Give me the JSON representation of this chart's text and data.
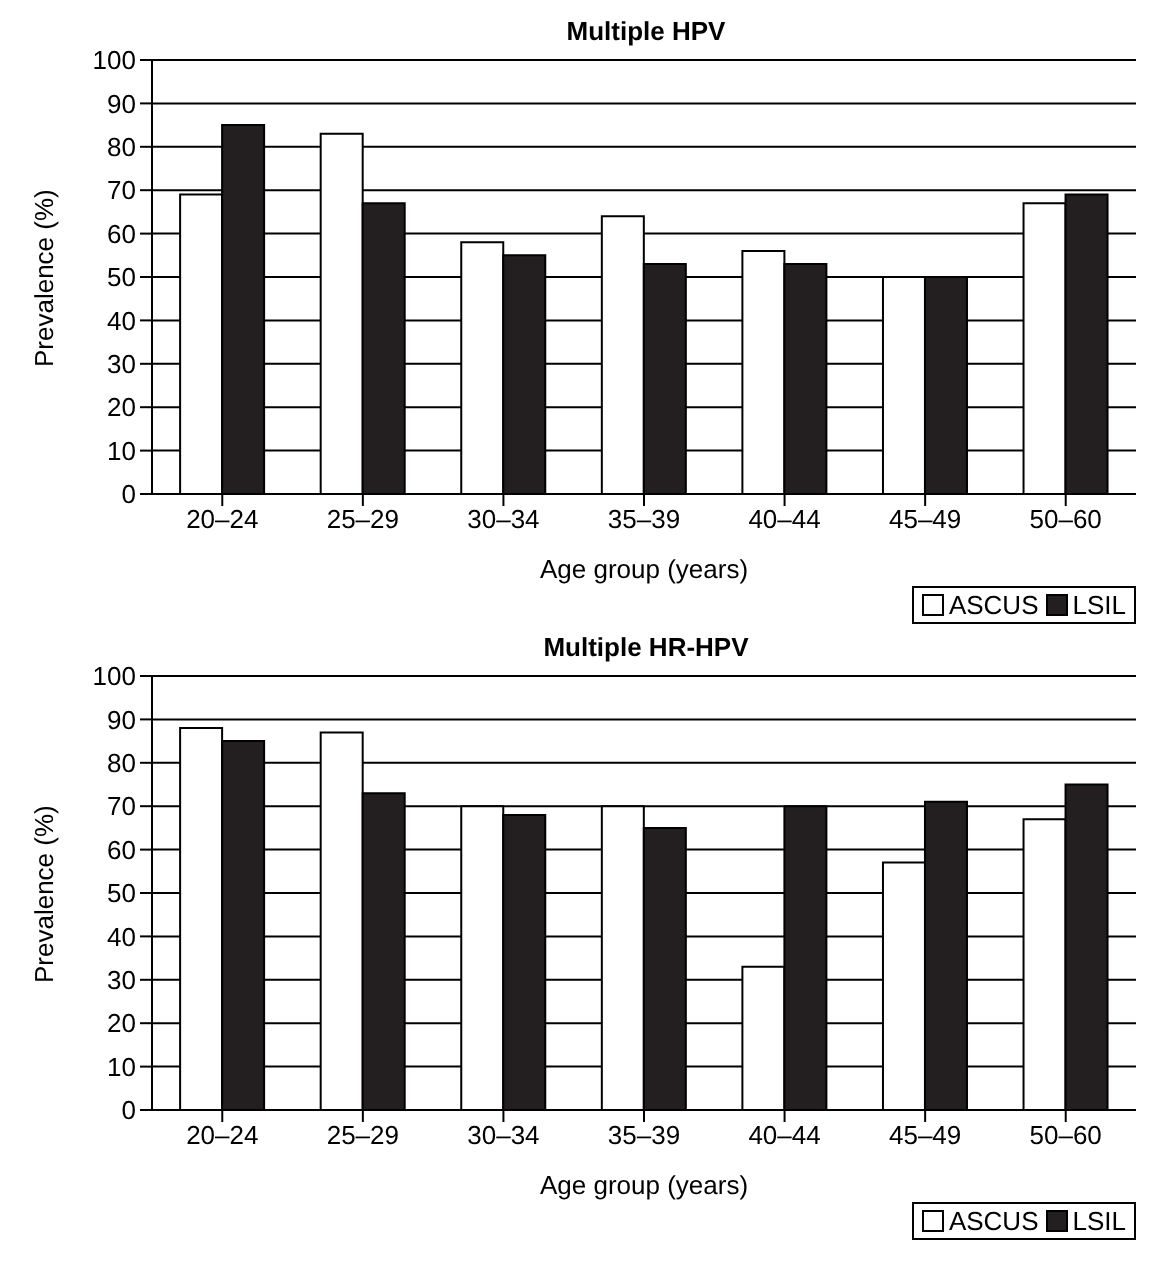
{
  "chart_data": [
    {
      "type": "bar",
      "title": "Multiple HPV",
      "xlabel": "Age group (years)",
      "ylabel": "Prevalence (%)",
      "categories": [
        "20–24",
        "25–29",
        "30–34",
        "35–39",
        "40–44",
        "45–49",
        "50–60"
      ],
      "series": [
        {
          "name": "ASCUS",
          "color": "#ffffff",
          "values": [
            69,
            83,
            58,
            64,
            56,
            50,
            67
          ]
        },
        {
          "name": "LSIL",
          "color": "#231f20",
          "values": [
            85,
            67,
            55,
            53,
            53,
            50,
            69
          ]
        }
      ],
      "ylim": [
        0,
        100
      ],
      "yticks": [
        0,
        10,
        20,
        30,
        40,
        50,
        60,
        70,
        80,
        90,
        100
      ],
      "grid": "y",
      "legend": "bottom right"
    },
    {
      "type": "bar",
      "title": "Multiple HR-HPV",
      "xlabel": "Age group (years)",
      "ylabel": "Prevalence (%)",
      "categories": [
        "20–24",
        "25–29",
        "30–34",
        "35–39",
        "40–44",
        "45–49",
        "50–60"
      ],
      "series": [
        {
          "name": "ASCUS",
          "color": "#ffffff",
          "values": [
            88,
            87,
            70,
            70,
            33,
            57,
            67
          ]
        },
        {
          "name": "LSIL",
          "color": "#231f20",
          "values": [
            85,
            73,
            68,
            65,
            70,
            71,
            75
          ]
        }
      ],
      "ylim": [
        0,
        100
      ],
      "yticks": [
        0,
        10,
        20,
        30,
        40,
        50,
        60,
        70,
        80,
        90,
        100
      ],
      "grid": "y",
      "legend": "bottom right"
    }
  ]
}
